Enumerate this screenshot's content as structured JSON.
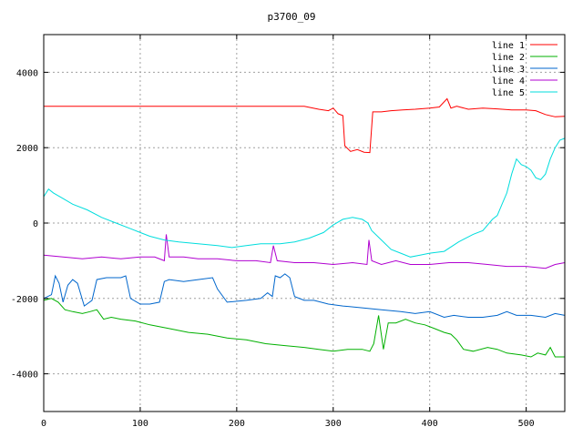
{
  "chart_data": {
    "type": "line",
    "title": "p3700_09",
    "xlabel": "",
    "ylabel": "",
    "xlim": [
      0,
      540
    ],
    "ylim": [
      -5000,
      5000
    ],
    "x_ticks": [
      0,
      100,
      200,
      300,
      400,
      500
    ],
    "y_ticks": [
      -4000,
      -2000,
      0,
      2000,
      4000
    ],
    "grid": true,
    "legend_position": "top-right",
    "series": [
      {
        "name": "line 1",
        "color": "#ff0000",
        "points": [
          [
            0,
            3100
          ],
          [
            270,
            3100
          ],
          [
            285,
            3020
          ],
          [
            295,
            2980
          ],
          [
            300,
            3050
          ],
          [
            305,
            2900
          ],
          [
            310,
            2850
          ],
          [
            312,
            2050
          ],
          [
            318,
            1900
          ],
          [
            325,
            1950
          ],
          [
            332,
            1880
          ],
          [
            338,
            1870
          ],
          [
            341,
            2950
          ],
          [
            350,
            2950
          ],
          [
            360,
            2980
          ],
          [
            372,
            3000
          ],
          [
            385,
            3020
          ],
          [
            400,
            3050
          ],
          [
            410,
            3080
          ],
          [
            418,
            3300
          ],
          [
            422,
            3050
          ],
          [
            428,
            3100
          ],
          [
            440,
            3020
          ],
          [
            455,
            3050
          ],
          [
            470,
            3030
          ],
          [
            485,
            3000
          ],
          [
            500,
            3000
          ],
          [
            510,
            2980
          ],
          [
            520,
            2880
          ],
          [
            530,
            2820
          ],
          [
            540,
            2830
          ]
        ]
      },
      {
        "name": "line 2",
        "color": "#00b000",
        "points": [
          [
            0,
            -2050
          ],
          [
            8,
            -2000
          ],
          [
            15,
            -2100
          ],
          [
            22,
            -2300
          ],
          [
            30,
            -2350
          ],
          [
            40,
            -2400
          ],
          [
            48,
            -2350
          ],
          [
            55,
            -2300
          ],
          [
            62,
            -2550
          ],
          [
            70,
            -2500
          ],
          [
            80,
            -2550
          ],
          [
            95,
            -2600
          ],
          [
            110,
            -2700
          ],
          [
            130,
            -2800
          ],
          [
            150,
            -2900
          ],
          [
            170,
            -2950
          ],
          [
            190,
            -3050
          ],
          [
            210,
            -3100
          ],
          [
            230,
            -3200
          ],
          [
            250,
            -3250
          ],
          [
            270,
            -3300
          ],
          [
            285,
            -3350
          ],
          [
            300,
            -3400
          ],
          [
            315,
            -3350
          ],
          [
            330,
            -3350
          ],
          [
            338,
            -3400
          ],
          [
            342,
            -3200
          ],
          [
            347,
            -2450
          ],
          [
            352,
            -3350
          ],
          [
            357,
            -2650
          ],
          [
            365,
            -2650
          ],
          [
            375,
            -2550
          ],
          [
            385,
            -2650
          ],
          [
            395,
            -2700
          ],
          [
            405,
            -2800
          ],
          [
            415,
            -2900
          ],
          [
            422,
            -2950
          ],
          [
            428,
            -3100
          ],
          [
            435,
            -3350
          ],
          [
            445,
            -3400
          ],
          [
            460,
            -3300
          ],
          [
            470,
            -3350
          ],
          [
            480,
            -3450
          ],
          [
            495,
            -3500
          ],
          [
            505,
            -3550
          ],
          [
            512,
            -3450
          ],
          [
            520,
            -3500
          ],
          [
            525,
            -3300
          ],
          [
            530,
            -3550
          ],
          [
            540,
            -3550
          ]
        ]
      },
      {
        "name": "line 3",
        "color": "#0066cc",
        "points": [
          [
            0,
            -2000
          ],
          [
            8,
            -1900
          ],
          [
            12,
            -1400
          ],
          [
            16,
            -1600
          ],
          [
            20,
            -2100
          ],
          [
            25,
            -1650
          ],
          [
            30,
            -1500
          ],
          [
            35,
            -1600
          ],
          [
            42,
            -2200
          ],
          [
            50,
            -2050
          ],
          [
            55,
            -1500
          ],
          [
            65,
            -1450
          ],
          [
            80,
            -1450
          ],
          [
            85,
            -1400
          ],
          [
            90,
            -2000
          ],
          [
            100,
            -2150
          ],
          [
            110,
            -2150
          ],
          [
            120,
            -2100
          ],
          [
            125,
            -1550
          ],
          [
            130,
            -1500
          ],
          [
            145,
            -1550
          ],
          [
            160,
            -1500
          ],
          [
            175,
            -1450
          ],
          [
            180,
            -1750
          ],
          [
            190,
            -2100
          ],
          [
            210,
            -2050
          ],
          [
            225,
            -2000
          ],
          [
            232,
            -1850
          ],
          [
            237,
            -1950
          ],
          [
            240,
            -1400
          ],
          [
            245,
            -1450
          ],
          [
            250,
            -1350
          ],
          [
            255,
            -1450
          ],
          [
            260,
            -1950
          ],
          [
            270,
            -2050
          ],
          [
            280,
            -2050
          ],
          [
            295,
            -2150
          ],
          [
            310,
            -2200
          ],
          [
            330,
            -2250
          ],
          [
            350,
            -2300
          ],
          [
            370,
            -2350
          ],
          [
            385,
            -2400
          ],
          [
            400,
            -2350
          ],
          [
            415,
            -2500
          ],
          [
            425,
            -2450
          ],
          [
            440,
            -2500
          ],
          [
            455,
            -2500
          ],
          [
            470,
            -2450
          ],
          [
            480,
            -2350
          ],
          [
            490,
            -2450
          ],
          [
            505,
            -2450
          ],
          [
            520,
            -2500
          ],
          [
            530,
            -2400
          ],
          [
            540,
            -2450
          ]
        ]
      },
      {
        "name": "line 4",
        "color": "#b000d0",
        "points": [
          [
            0,
            -850
          ],
          [
            20,
            -900
          ],
          [
            40,
            -950
          ],
          [
            60,
            -900
          ],
          [
            80,
            -950
          ],
          [
            100,
            -900
          ],
          [
            115,
            -900
          ],
          [
            125,
            -1000
          ],
          [
            127,
            -300
          ],
          [
            130,
            -900
          ],
          [
            145,
            -900
          ],
          [
            160,
            -950
          ],
          [
            180,
            -950
          ],
          [
            200,
            -1000
          ],
          [
            220,
            -1000
          ],
          [
            235,
            -1050
          ],
          [
            238,
            -600
          ],
          [
            242,
            -1000
          ],
          [
            260,
            -1050
          ],
          [
            280,
            -1050
          ],
          [
            300,
            -1100
          ],
          [
            320,
            -1050
          ],
          [
            335,
            -1100
          ],
          [
            337,
            -450
          ],
          [
            340,
            -1000
          ],
          [
            350,
            -1100
          ],
          [
            365,
            -1000
          ],
          [
            380,
            -1100
          ],
          [
            400,
            -1100
          ],
          [
            420,
            -1050
          ],
          [
            440,
            -1050
          ],
          [
            460,
            -1100
          ],
          [
            480,
            -1150
          ],
          [
            500,
            -1150
          ],
          [
            520,
            -1200
          ],
          [
            530,
            -1100
          ],
          [
            540,
            -1050
          ]
        ]
      },
      {
        "name": "line 5",
        "color": "#00dddd",
        "points": [
          [
            0,
            700
          ],
          [
            5,
            900
          ],
          [
            10,
            800
          ],
          [
            20,
            650
          ],
          [
            30,
            500
          ],
          [
            45,
            350
          ],
          [
            60,
            150
          ],
          [
            75,
            0
          ],
          [
            90,
            -150
          ],
          [
            100,
            -250
          ],
          [
            110,
            -350
          ],
          [
            125,
            -450
          ],
          [
            140,
            -500
          ],
          [
            160,
            -550
          ],
          [
            180,
            -600
          ],
          [
            195,
            -650
          ],
          [
            210,
            -600
          ],
          [
            225,
            -550
          ],
          [
            245,
            -550
          ],
          [
            260,
            -500
          ],
          [
            275,
            -400
          ],
          [
            290,
            -250
          ],
          [
            300,
            -50
          ],
          [
            310,
            100
          ],
          [
            320,
            150
          ],
          [
            330,
            100
          ],
          [
            336,
            0
          ],
          [
            340,
            -200
          ],
          [
            350,
            -450
          ],
          [
            360,
            -700
          ],
          [
            370,
            -800
          ],
          [
            380,
            -900
          ],
          [
            390,
            -850
          ],
          [
            400,
            -800
          ],
          [
            415,
            -750
          ],
          [
            430,
            -500
          ],
          [
            445,
            -300
          ],
          [
            455,
            -200
          ],
          [
            465,
            100
          ],
          [
            470,
            200
          ],
          [
            475,
            500
          ],
          [
            480,
            800
          ],
          [
            485,
            1300
          ],
          [
            490,
            1700
          ],
          [
            495,
            1550
          ],
          [
            500,
            1500
          ],
          [
            505,
            1400
          ],
          [
            510,
            1200
          ],
          [
            515,
            1150
          ],
          [
            520,
            1300
          ],
          [
            525,
            1700
          ],
          [
            530,
            2000
          ],
          [
            535,
            2200
          ],
          [
            540,
            2250
          ]
        ]
      }
    ]
  }
}
